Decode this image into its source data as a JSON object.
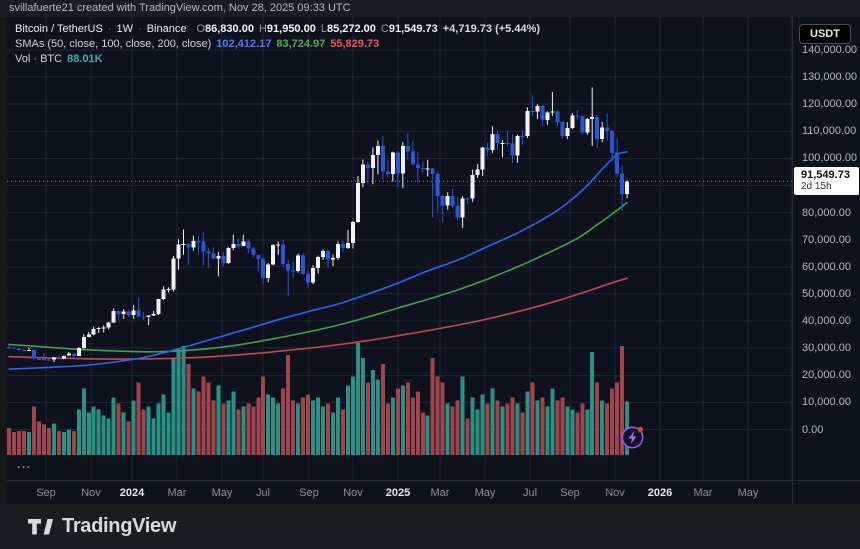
{
  "attribution": "svillafuerte21 created with TradingView.com, Nov 28, 2025 09:33 UTC",
  "legend": {
    "symbol": {
      "name": "Bitcoin / TetherUS",
      "separator": "·",
      "interval": "1W",
      "exchange": "Binance"
    },
    "ohlc": [
      {
        "k": "O",
        "v": "86,830.00"
      },
      {
        "k": "H",
        "v": "91,950.00"
      },
      {
        "k": "L",
        "v": "85,272.00"
      },
      {
        "k": "C",
        "v": "91,549.73"
      }
    ],
    "change": "+4,719.73 (+5.44%)",
    "smas": {
      "label": "SMAs (50, close, 100, close, 200, close)",
      "sma50": "102,412.17",
      "sma100": "83,724.97",
      "sma200": "55,829.73"
    },
    "volume": {
      "label": "Vol · BTC",
      "value": "88.01K"
    }
  },
  "price_scale": {
    "currency": "USDT",
    "ticks": [
      {
        "v": 140000,
        "label": "140,000.00"
      },
      {
        "v": 130000,
        "label": "130,000.00"
      },
      {
        "v": 120000,
        "label": "120,000.00"
      },
      {
        "v": 110000,
        "label": "110,000.00"
      },
      {
        "v": 100000,
        "label": "100,000.00"
      },
      {
        "v": 90000,
        "label": "90,000.00"
      },
      {
        "v": 80000,
        "label": "80,000.00"
      },
      {
        "v": 70000,
        "label": "70,000.00"
      },
      {
        "v": 60000,
        "label": "60,000.00"
      },
      {
        "v": 50000,
        "label": "50,000.00"
      },
      {
        "v": 40000,
        "label": "40,000.00"
      },
      {
        "v": 30000,
        "label": "30,000.00"
      },
      {
        "v": 20000,
        "label": "20,000.00"
      },
      {
        "v": 10000,
        "label": "10,000.00"
      },
      {
        "v": 0,
        "label": "0.00"
      }
    ],
    "last_price_label": "91,549.73",
    "countdown": "2d 15h"
  },
  "pane_buttons": {
    "more": "...",
    "boost_icon": "lightning-boost-icon"
  },
  "footer": {
    "brand": "TradingView"
  },
  "colors": {
    "pane_bg": "#0d121d",
    "frame_bg": "#1b1c21",
    "grid": "#1d2433",
    "border": "#2a2e39",
    "candle_up": "#f0f2f5",
    "candle_down": "#2c55d6",
    "volume_up": "#2f9c8d",
    "volume_down": "#ad4a53",
    "sma50": "#2962ff",
    "sma100": "#3fa34d",
    "sma200": "#d2424e",
    "sma50_text": "#4f7bff",
    "sma100_text": "#4caf50",
    "sma200_text": "#f7525f",
    "vol_text": "#3bb3a0",
    "close_line": "#9598a1",
    "boost_purple": "#8b5cf6",
    "badge_red": "#f23645"
  },
  "chart_data": {
    "type": "candlestick",
    "title": "Bitcoin / TetherUS · 1W · Binance",
    "last_close": 91549.73,
    "change": 4719.73,
    "change_pct": 5.44,
    "units": {
      "price": "USDT, candle values stored in thousands",
      "volume": "thousand BTC per week"
    },
    "y_axis": {
      "min": 0,
      "max": 140000,
      "step": 10000,
      "grid": true
    },
    "x_axis": {
      "ticks": [
        {
          "label": "Sep",
          "x": 46
        },
        {
          "label": "Nov",
          "x": 91
        },
        {
          "label": "2024",
          "x": 132,
          "year": true
        },
        {
          "label": "Mar",
          "x": 177
        },
        {
          "label": "May",
          "x": 222
        },
        {
          "label": "Jul",
          "x": 263
        },
        {
          "label": "Sep",
          "x": 309
        },
        {
          "label": "Nov",
          "x": 353
        },
        {
          "label": "2025",
          "x": 398,
          "year": true
        },
        {
          "label": "Mar",
          "x": 440
        },
        {
          "label": "May",
          "x": 485
        },
        {
          "label": "Jul",
          "x": 530
        },
        {
          "label": "Sep",
          "x": 570
        },
        {
          "label": "Nov",
          "x": 615
        },
        {
          "label": "2026",
          "x": 660,
          "year": true
        },
        {
          "label": "Mar",
          "x": 703
        },
        {
          "label": "May",
          "x": 748
        },
        {
          "label": "",
          "x": 791
        }
      ]
    },
    "candles_ohlcv": [
      [
        30.4,
        31.0,
        29.8,
        30.2,
        45
      ],
      [
        30.2,
        30.3,
        29.6,
        29.9,
        38
      ],
      [
        29.9,
        30.1,
        28.9,
        29.35,
        40
      ],
      [
        29.35,
        29.7,
        28.8,
        29.08,
        40
      ],
      [
        29.08,
        30.2,
        28.9,
        29.4,
        38
      ],
      [
        29.4,
        29.6,
        25.4,
        26.1,
        80
      ],
      [
        26.1,
        26.8,
        25.7,
        26.0,
        55
      ],
      [
        26.0,
        28.1,
        25.5,
        25.9,
        50
      ],
      [
        25.9,
        26.4,
        25.3,
        25.85,
        45
      ],
      [
        25.85,
        26.8,
        24.9,
        26.5,
        52
      ],
      [
        26.5,
        27.4,
        26.1,
        26.25,
        40
      ],
      [
        26.25,
        27.3,
        26.0,
        27.2,
        38
      ],
      [
        27.2,
        28.6,
        27.2,
        27.95,
        42
      ],
      [
        27.95,
        28.0,
        26.5,
        27.15,
        40
      ],
      [
        27.15,
        30.4,
        27.1,
        30.0,
        75
      ],
      [
        30.0,
        35.2,
        29.8,
        34.1,
        110
      ],
      [
        34.1,
        36.0,
        34.0,
        35.05,
        70
      ],
      [
        35.05,
        38.0,
        34.7,
        37.1,
        80
      ],
      [
        37.1,
        37.9,
        35.6,
        37.4,
        75
      ],
      [
        37.4,
        38.4,
        35.8,
        37.7,
        65
      ],
      [
        37.7,
        39.7,
        36.9,
        39.45,
        60
      ],
      [
        39.45,
        44.7,
        39.3,
        43.8,
        95
      ],
      [
        43.8,
        43.9,
        40.2,
        42.65,
        85
      ],
      [
        42.65,
        44.4,
        40.8,
        43.6,
        70
      ],
      [
        43.6,
        43.8,
        41.5,
        42.3,
        55
      ],
      [
        42.3,
        45.9,
        40.8,
        43.95,
        90
      ],
      [
        43.95,
        48.7,
        41.5,
        41.7,
        120
      ],
      [
        41.7,
        43.4,
        40.3,
        41.6,
        75
      ],
      [
        41.6,
        42.2,
        38.5,
        42.0,
        80
      ],
      [
        42.0,
        43.7,
        41.9,
        42.6,
        60
      ],
      [
        42.6,
        48.2,
        42.2,
        48.1,
        85
      ],
      [
        48.1,
        52.8,
        47.7,
        51.7,
        100
      ],
      [
        51.7,
        52.5,
        50.5,
        51.75,
        70
      ],
      [
        51.75,
        64.0,
        50.9,
        63.1,
        160
      ],
      [
        63.1,
        70.2,
        59.0,
        68.3,
        175
      ],
      [
        68.3,
        73.8,
        64.5,
        68.4,
        180
      ],
      [
        68.4,
        68.9,
        60.8,
        67.2,
        150
      ],
      [
        67.2,
        71.5,
        66.0,
        69.6,
        110
      ],
      [
        69.6,
        71.3,
        64.5,
        69.4,
        105
      ],
      [
        69.4,
        72.8,
        60.7,
        65.7,
        130
      ],
      [
        65.7,
        66.9,
        59.6,
        64.9,
        120
      ],
      [
        64.9,
        67.2,
        62.8,
        63.1,
        90
      ],
      [
        63.1,
        65.5,
        56.5,
        64.0,
        115
      ],
      [
        64.0,
        65.5,
        60.2,
        61.5,
        85
      ],
      [
        61.5,
        67.3,
        61.1,
        66.9,
        90
      ],
      [
        66.9,
        71.9,
        66.1,
        68.5,
        105
      ],
      [
        68.5,
        70.6,
        66.7,
        67.75,
        75
      ],
      [
        67.75,
        71.9,
        67.6,
        69.3,
        80
      ],
      [
        69.3,
        70.2,
        65.1,
        66.7,
        85
      ],
      [
        66.7,
        67.3,
        63.4,
        64.3,
        80
      ],
      [
        64.3,
        64.5,
        58.4,
        62.9,
        95
      ],
      [
        62.9,
        63.8,
        53.5,
        55.85,
        130
      ],
      [
        55.85,
        61.4,
        54.3,
        60.8,
        100
      ],
      [
        60.8,
        68.4,
        60.6,
        68.15,
        95
      ],
      [
        68.15,
        69.4,
        64.5,
        68.25,
        85
      ],
      [
        68.25,
        70.0,
        60.2,
        61.0,
        110
      ],
      [
        61.0,
        62.7,
        49.1,
        58.7,
        165
      ],
      [
        58.7,
        61.8,
        56.1,
        58.45,
        90
      ],
      [
        58.45,
        64.9,
        57.9,
        64.25,
        85
      ],
      [
        64.25,
        65.0,
        57.1,
        57.3,
        95
      ],
      [
        57.3,
        58.5,
        52.5,
        54.15,
        100
      ],
      [
        54.15,
        60.6,
        53.6,
        59.5,
        90
      ],
      [
        59.5,
        64.1,
        57.5,
        63.6,
        95
      ],
      [
        63.6,
        66.5,
        62.6,
        65.9,
        80
      ],
      [
        65.9,
        66.5,
        60.0,
        62.8,
        85
      ],
      [
        62.8,
        64.5,
        60.3,
        63.2,
        70
      ],
      [
        63.2,
        69.4,
        62.5,
        68.4,
        95
      ],
      [
        68.4,
        69.5,
        65.5,
        67.0,
        75
      ],
      [
        67.0,
        73.6,
        66.6,
        68.75,
        115
      ],
      [
        68.75,
        76.9,
        66.8,
        76.5,
        130
      ],
      [
        76.5,
        93.4,
        76.3,
        91.0,
        185
      ],
      [
        91.0,
        99.6,
        89.4,
        97.7,
        160
      ],
      [
        97.7,
        98.9,
        90.8,
        96.4,
        120
      ],
      [
        96.4,
        104.0,
        90.5,
        101.2,
        140
      ],
      [
        101.2,
        106.6,
        94.2,
        104.5,
        125
      ],
      [
        104.5,
        108.3,
        92.2,
        95.1,
        150
      ],
      [
        95.1,
        99.5,
        92.7,
        94.3,
        85
      ],
      [
        94.3,
        102.5,
        91.5,
        102.2,
        95
      ],
      [
        102.2,
        102.7,
        89.2,
        94.5,
        110
      ],
      [
        94.5,
        106.0,
        89.0,
        104.5,
        115
      ],
      [
        104.5,
        109.4,
        99.5,
        102.6,
        120
      ],
      [
        102.6,
        106.5,
        97.8,
        97.7,
        95
      ],
      [
        97.7,
        102.5,
        91.2,
        96.5,
        105
      ],
      [
        96.5,
        98.9,
        94.8,
        96.1,
        70
      ],
      [
        96.1,
        99.5,
        93.3,
        96.3,
        65
      ],
      [
        96.3,
        96.5,
        78.2,
        94.2,
        160
      ],
      [
        94.2,
        95.0,
        80.1,
        86.2,
        130
      ],
      [
        86.2,
        86.5,
        76.6,
        82.6,
        120
      ],
      [
        82.6,
        87.5,
        81.1,
        86.1,
        85
      ],
      [
        86.1,
        88.8,
        81.6,
        82.4,
        80
      ],
      [
        82.4,
        85.5,
        77.1,
        78.2,
        90
      ],
      [
        78.2,
        86.1,
        74.4,
        85.3,
        130
      ],
      [
        85.3,
        85.8,
        83.1,
        85.2,
        60
      ],
      [
        85.2,
        95.9,
        84.0,
        93.8,
        95
      ],
      [
        93.8,
        97.9,
        92.9,
        95.9,
        75
      ],
      [
        95.9,
        104.3,
        93.5,
        104.1,
        100
      ],
      [
        104.1,
        105.8,
        100.7,
        103.1,
        85
      ],
      [
        103.1,
        111.9,
        102.1,
        109.0,
        110
      ],
      [
        109.0,
        110.3,
        103.1,
        105.6,
        90
      ],
      [
        105.6,
        106.8,
        100.4,
        105.7,
        80
      ],
      [
        105.7,
        110.3,
        104.5,
        105.5,
        85
      ],
      [
        105.5,
        108.9,
        98.2,
        101.0,
        95
      ],
      [
        101.0,
        108.8,
        98.4,
        108.3,
        85
      ],
      [
        108.3,
        110.5,
        105.1,
        108.2,
        70
      ],
      [
        108.2,
        118.9,
        107.5,
        117.5,
        105
      ],
      [
        117.5,
        123.2,
        115.7,
        117.3,
        120
      ],
      [
        117.3,
        120.0,
        114.5,
        119.4,
        90
      ],
      [
        119.4,
        119.8,
        112.0,
        114.2,
        95
      ],
      [
        114.2,
        117.4,
        112.4,
        116.9,
        80
      ],
      [
        116.9,
        124.5,
        115.7,
        117.4,
        110
      ],
      [
        117.4,
        118.0,
        111.9,
        113.5,
        90
      ],
      [
        113.5,
        113.8,
        107.3,
        108.2,
        95
      ],
      [
        108.2,
        113.4,
        107.2,
        111.2,
        80
      ],
      [
        111.2,
        116.8,
        110.8,
        115.9,
        75
      ],
      [
        115.9,
        117.9,
        114.2,
        115.7,
        70
      ],
      [
        115.7,
        115.8,
        108.7,
        109.6,
        85
      ],
      [
        109.6,
        114.9,
        108.8,
        114.6,
        75
      ],
      [
        114.6,
        126.2,
        104.6,
        115.3,
        170
      ],
      [
        115.3,
        116.1,
        103.9,
        107.2,
        120
      ],
      [
        107.2,
        113.5,
        106.0,
        111.5,
        90
      ],
      [
        111.5,
        116.5,
        106.6,
        110.1,
        85
      ],
      [
        110.1,
        110.7,
        98.9,
        102.1,
        110
      ],
      [
        102.1,
        107.4,
        93.0,
        94.4,
        120
      ],
      [
        94.4,
        97.3,
        80.6,
        86.8,
        180
      ],
      [
        86.83,
        91.95,
        85.272,
        91.54973,
        88.01
      ]
    ],
    "series": [
      {
        "name": "SMA 50",
        "last": 102412.17,
        "points": [
          [
            0,
            22.3
          ],
          [
            8,
            22.9
          ],
          [
            16,
            23.8
          ],
          [
            24,
            25.6
          ],
          [
            30,
            27.8
          ],
          [
            36,
            30.8
          ],
          [
            42,
            34.0
          ],
          [
            48,
            37.2
          ],
          [
            54,
            40.5
          ],
          [
            60,
            43.5
          ],
          [
            66,
            46.3
          ],
          [
            72,
            50.0
          ],
          [
            78,
            54.0
          ],
          [
            84,
            58.5
          ],
          [
            90,
            62.5
          ],
          [
            96,
            67.5
          ],
          [
            102,
            72.5
          ],
          [
            108,
            78.5
          ],
          [
            112,
            83.5
          ],
          [
            116,
            90.0
          ],
          [
            118,
            94.0
          ],
          [
            120,
            98.0
          ],
          [
            122,
            101.5
          ],
          [
            124,
            102.412
          ]
        ]
      },
      {
        "name": "SMA 100",
        "last": 83724.97,
        "points": [
          [
            0,
            31.4
          ],
          [
            6,
            30.6
          ],
          [
            12,
            29.8
          ],
          [
            18,
            29.2
          ],
          [
            24,
            28.8
          ],
          [
            30,
            28.7
          ],
          [
            36,
            29.2
          ],
          [
            42,
            30.2
          ],
          [
            48,
            31.8
          ],
          [
            54,
            33.8
          ],
          [
            60,
            36.0
          ],
          [
            66,
            38.5
          ],
          [
            72,
            41.5
          ],
          [
            78,
            44.8
          ],
          [
            84,
            48.0
          ],
          [
            90,
            51.5
          ],
          [
            96,
            55.5
          ],
          [
            102,
            60.0
          ],
          [
            108,
            65.0
          ],
          [
            114,
            70.5
          ],
          [
            118,
            75.5
          ],
          [
            121,
            79.5
          ],
          [
            124,
            83.725
          ]
        ]
      },
      {
        "name": "SMA 200",
        "last": 55829.73,
        "points": [
          [
            0,
            26.9
          ],
          [
            8,
            26.4
          ],
          [
            16,
            26.1
          ],
          [
            24,
            26.0
          ],
          [
            32,
            26.2
          ],
          [
            40,
            26.8
          ],
          [
            48,
            27.8
          ],
          [
            56,
            29.2
          ],
          [
            64,
            30.8
          ],
          [
            72,
            32.8
          ],
          [
            80,
            35.2
          ],
          [
            88,
            37.8
          ],
          [
            96,
            40.8
          ],
          [
            104,
            44.4
          ],
          [
            110,
            47.5
          ],
          [
            116,
            51.0
          ],
          [
            120,
            53.5
          ],
          [
            124,
            55.83
          ]
        ]
      }
    ],
    "volume_last": "88.01K"
  }
}
